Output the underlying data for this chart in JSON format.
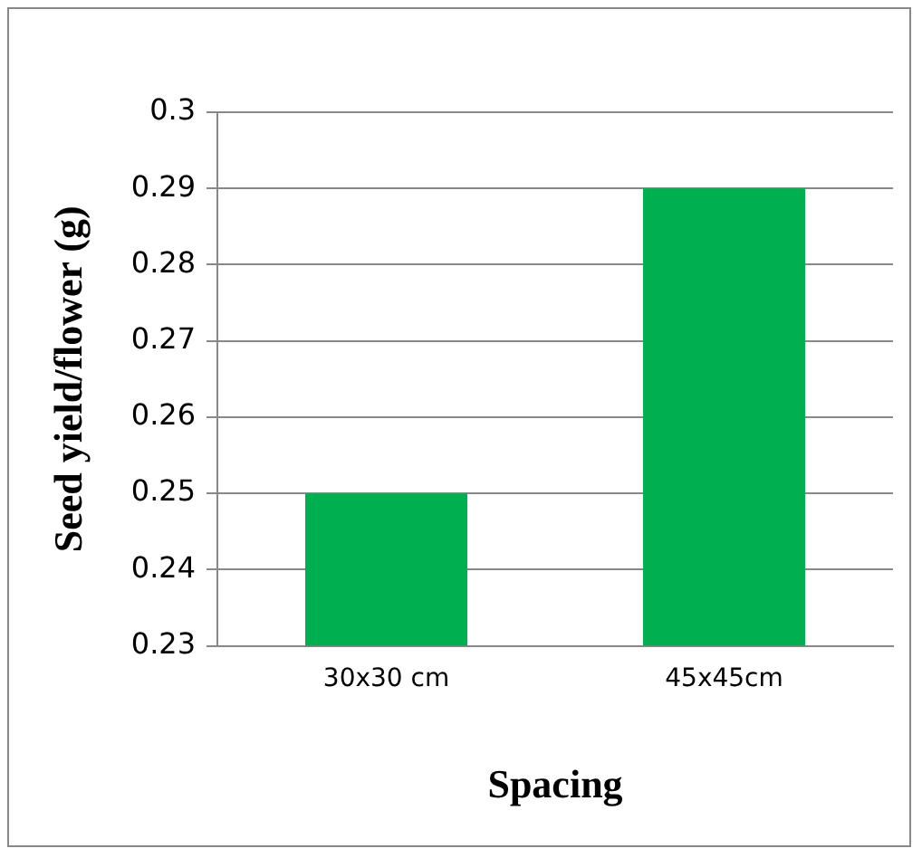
{
  "chart_data": {
    "type": "bar",
    "xlabel": "Spacing",
    "ylabel": "Seed yield/flower (g)",
    "categories": [
      "30x30 cm",
      "45x45cm"
    ],
    "values": [
      0.25,
      0.29
    ],
    "color": "#00b050",
    "ylim": [
      0.23,
      0.3
    ],
    "yticks": [
      0.23,
      0.24,
      0.25,
      0.26,
      0.27,
      0.28,
      0.29,
      0.3
    ],
    "grid": "y",
    "legend": false
  }
}
